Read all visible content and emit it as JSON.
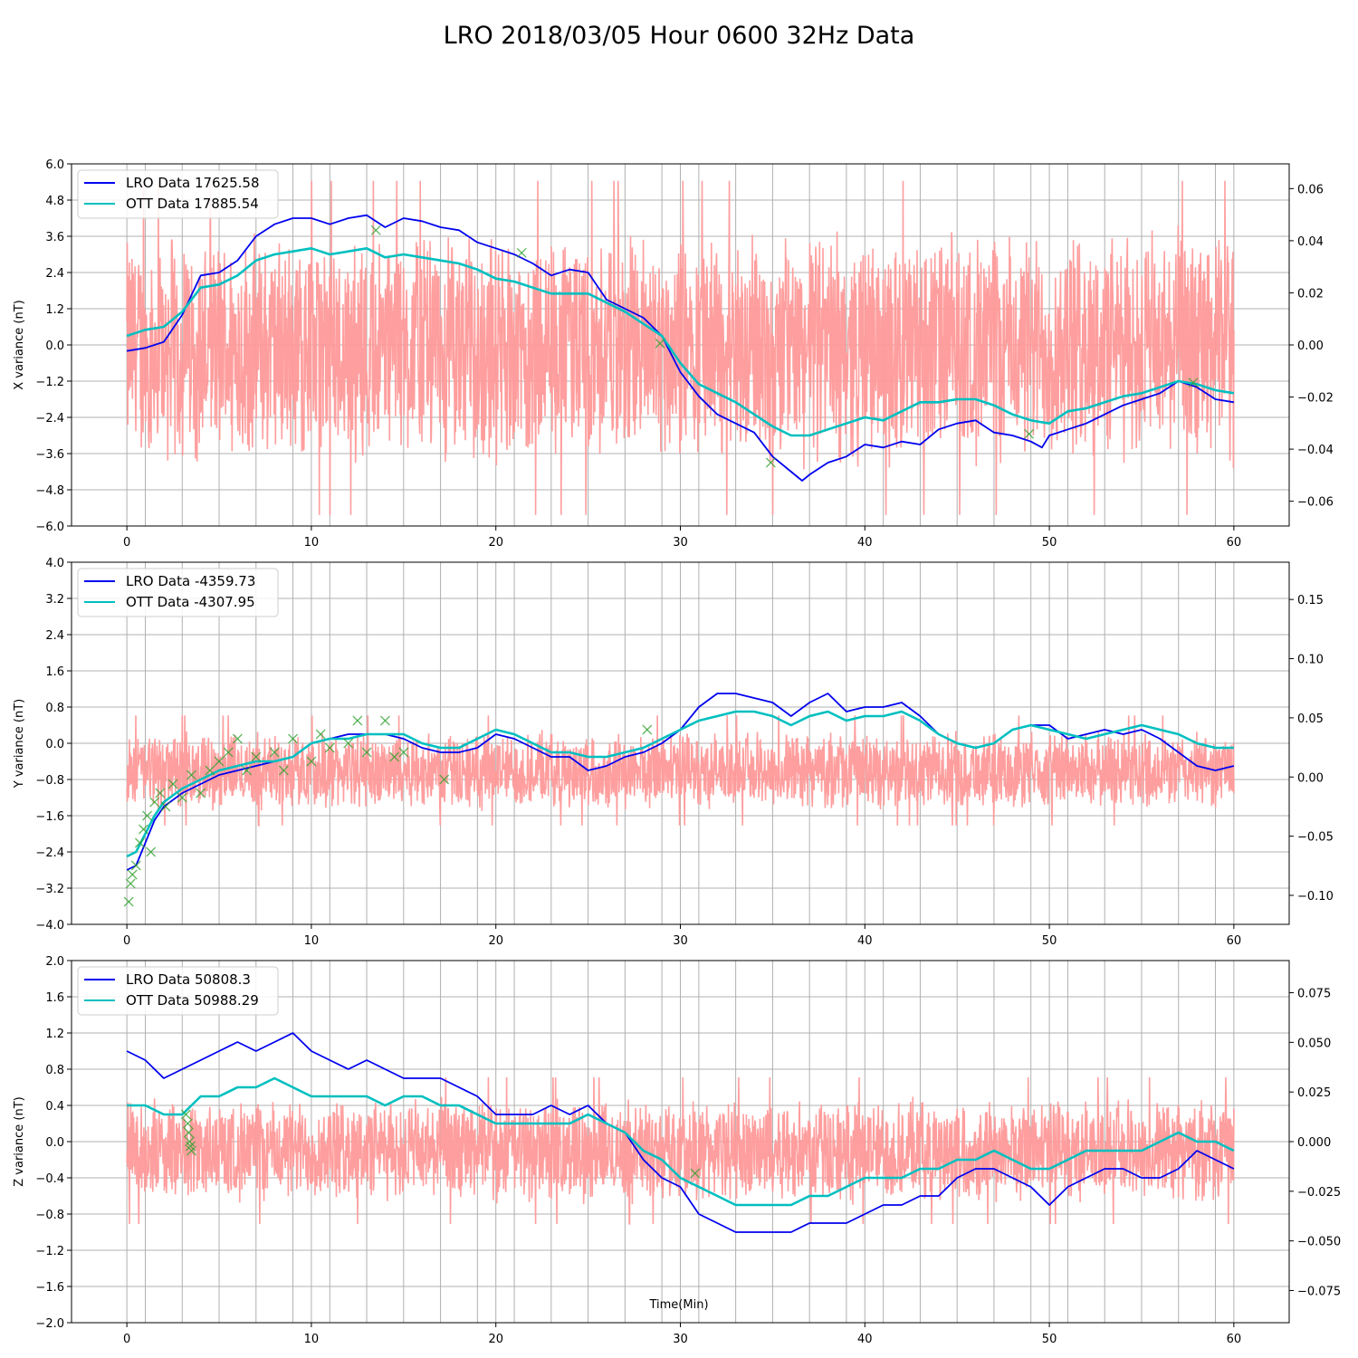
{
  "figure": {
    "title": "LRO 2018/03/05 Hour 0600 32Hz Data",
    "xlabel": "Time(Min)"
  },
  "colors": {
    "lro": "#0000ee",
    "ott": "#00bfbf",
    "noise": "#ff9999",
    "marker": "#2ca02c",
    "grid": "#b0b0b0"
  },
  "chart_data": [
    {
      "type": "line",
      "ylabel": "X variance (nT)",
      "xlim": [
        -3,
        63
      ],
      "xticks": [
        0,
        10,
        20,
        30,
        40,
        50,
        60
      ],
      "ylim": [
        -6.0,
        6.0
      ],
      "yticks": [
        -6.0,
        -4.8,
        -3.6,
        -2.4,
        -1.2,
        0.0,
        1.2,
        2.4,
        3.6,
        4.8,
        6.0
      ],
      "ylim_right": [
        -0.0695,
        0.0695
      ],
      "yticks_right": [
        -0.06,
        -0.04,
        -0.02,
        0.0,
        0.02,
        0.04,
        0.06
      ],
      "legend": [
        "LRO Data 17625.58",
        "OTT Data 17885.54"
      ],
      "legend_loc": "upper left",
      "grid": true,
      "series": [
        {
          "key": "lro",
          "x": [
            0,
            1,
            2,
            3,
            4,
            5,
            6,
            7,
            8,
            9,
            10,
            11,
            12,
            13,
            14,
            15,
            16,
            17,
            18,
            19,
            20,
            21,
            22,
            23,
            24,
            25,
            26,
            27,
            28,
            29,
            30,
            31,
            32,
            33,
            34,
            35,
            36,
            36.6,
            37,
            38,
            39,
            40,
            41,
            42,
            43,
            44,
            45,
            46,
            47,
            48,
            49,
            49.6,
            50,
            51,
            52,
            53,
            54,
            55,
            56,
            57,
            58,
            59,
            60
          ],
          "y": [
            -0.2,
            -0.1,
            0.1,
            1.0,
            2.3,
            2.4,
            2.8,
            3.6,
            4.0,
            4.2,
            4.2,
            4.0,
            4.2,
            4.3,
            3.9,
            4.2,
            4.1,
            3.9,
            3.8,
            3.4,
            3.2,
            3.0,
            2.7,
            2.3,
            2.5,
            2.4,
            1.5,
            1.2,
            0.9,
            0.3,
            -0.9,
            -1.7,
            -2.3,
            -2.6,
            -2.9,
            -3.7,
            -4.2,
            -4.5,
            -4.3,
            -3.9,
            -3.7,
            -3.3,
            -3.4,
            -3.2,
            -3.3,
            -2.8,
            -2.6,
            -2.5,
            -2.9,
            -3.0,
            -3.2,
            -3.4,
            -3.0,
            -2.8,
            -2.6,
            -2.3,
            -2.0,
            -1.8,
            -1.6,
            -1.2,
            -1.4,
            -1.8,
            -1.9
          ]
        },
        {
          "key": "ott",
          "x": [
            0,
            1,
            2,
            3,
            4,
            5,
            6,
            7,
            8,
            9,
            10,
            11,
            12,
            13,
            14,
            15,
            16,
            17,
            18,
            19,
            20,
            21,
            22,
            23,
            24,
            25,
            26,
            27,
            28,
            29,
            30,
            31,
            32,
            33,
            34,
            35,
            36,
            37,
            38,
            39,
            40,
            41,
            42,
            43,
            44,
            45,
            46,
            47,
            48,
            49,
            50,
            51,
            52,
            53,
            54,
            55,
            56,
            57,
            58,
            59,
            60
          ],
          "y": [
            0.3,
            0.5,
            0.6,
            1.1,
            1.9,
            2.0,
            2.3,
            2.8,
            3.0,
            3.1,
            3.2,
            3.0,
            3.1,
            3.2,
            2.9,
            3.0,
            2.9,
            2.8,
            2.7,
            2.5,
            2.2,
            2.1,
            1.9,
            1.7,
            1.7,
            1.7,
            1.4,
            1.1,
            0.7,
            0.3,
            -0.6,
            -1.3,
            -1.6,
            -1.9,
            -2.3,
            -2.7,
            -3.0,
            -3.0,
            -2.8,
            -2.6,
            -2.4,
            -2.5,
            -2.2,
            -1.9,
            -1.9,
            -1.8,
            -1.8,
            -2.0,
            -2.3,
            -2.5,
            -2.6,
            -2.2,
            -2.1,
            -1.9,
            -1.7,
            -1.6,
            -1.4,
            -1.2,
            -1.3,
            -1.5,
            -1.6
          ]
        }
      ],
      "noise_band": {
        "min": -4.2,
        "max": 4.0
      },
      "markers": [
        {
          "x": 13.5,
          "y": 3.8
        },
        {
          "x": 21.4,
          "y": 3.05
        },
        {
          "x": 28.9,
          "y": 0.05
        },
        {
          "x": 34.9,
          "y": -3.9
        },
        {
          "x": 48.9,
          "y": -2.95
        },
        {
          "x": 57.8,
          "y": -1.25
        }
      ]
    },
    {
      "type": "line",
      "ylabel": "Y variance (nT)",
      "xlim": [
        -3,
        63
      ],
      "xticks": [
        0,
        10,
        20,
        30,
        40,
        50,
        60
      ],
      "ylim": [
        -4.0,
        4.0
      ],
      "yticks": [
        -4.0,
        -3.2,
        -2.4,
        -1.6,
        -0.8,
        0.0,
        0.8,
        1.6,
        2.4,
        3.2,
        4.0
      ],
      "ylim_right": [
        -0.1245,
        0.1815
      ],
      "yticks_right": [
        -0.1,
        -0.05,
        0.0,
        0.05,
        0.1,
        0.15
      ],
      "legend": [
        "LRO Data -4359.73",
        "OTT Data -4307.95"
      ],
      "legend_loc": "upper left",
      "grid": true,
      "series": [
        {
          "key": "lro",
          "x": [
            0,
            0.5,
            1,
            1.5,
            2,
            3,
            4,
            5,
            6,
            7,
            8,
            9,
            10,
            11,
            12,
            13,
            14,
            15,
            16,
            17,
            18,
            19,
            20,
            21,
            22,
            23,
            24,
            25,
            26,
            27,
            28,
            29,
            30,
            31,
            32,
            33,
            34,
            35,
            36,
            37,
            38,
            39,
            40,
            41,
            42,
            43,
            44,
            45,
            46,
            47,
            48,
            49,
            50,
            51,
            52,
            53,
            54,
            55,
            56,
            57,
            58,
            59,
            60
          ],
          "y": [
            -2.8,
            -2.7,
            -2.2,
            -1.7,
            -1.4,
            -1.1,
            -0.9,
            -0.7,
            -0.6,
            -0.5,
            -0.4,
            -0.3,
            0.0,
            0.1,
            0.2,
            0.2,
            0.2,
            0.1,
            -0.1,
            -0.2,
            -0.2,
            -0.1,
            0.2,
            0.1,
            -0.1,
            -0.3,
            -0.3,
            -0.6,
            -0.5,
            -0.3,
            -0.2,
            0.0,
            0.3,
            0.8,
            1.1,
            1.1,
            1.0,
            0.9,
            0.6,
            0.9,
            1.1,
            0.7,
            0.8,
            0.8,
            0.9,
            0.6,
            0.2,
            0.0,
            -0.1,
            0.0,
            0.3,
            0.4,
            0.4,
            0.1,
            0.2,
            0.3,
            0.2,
            0.3,
            0.1,
            -0.2,
            -0.5,
            -0.6,
            -0.5
          ]
        },
        {
          "key": "ott",
          "x": [
            0,
            0.5,
            1,
            1.5,
            2,
            3,
            4,
            5,
            6,
            7,
            8,
            9,
            10,
            11,
            12,
            13,
            14,
            15,
            16,
            17,
            18,
            19,
            20,
            21,
            22,
            23,
            24,
            25,
            26,
            27,
            28,
            29,
            30,
            31,
            32,
            33,
            34,
            35,
            36,
            37,
            38,
            39,
            40,
            41,
            42,
            43,
            44,
            45,
            46,
            47,
            48,
            49,
            50,
            51,
            52,
            53,
            54,
            55,
            56,
            57,
            58,
            59,
            60
          ],
          "y": [
            -2.5,
            -2.4,
            -2.0,
            -1.6,
            -1.3,
            -1.0,
            -0.8,
            -0.6,
            -0.5,
            -0.4,
            -0.4,
            -0.3,
            0.0,
            0.1,
            0.1,
            0.2,
            0.2,
            0.2,
            0.0,
            -0.1,
            -0.1,
            0.1,
            0.3,
            0.2,
            0.0,
            -0.2,
            -0.2,
            -0.3,
            -0.3,
            -0.2,
            -0.1,
            0.1,
            0.3,
            0.5,
            0.6,
            0.7,
            0.7,
            0.6,
            0.4,
            0.6,
            0.7,
            0.5,
            0.6,
            0.6,
            0.7,
            0.5,
            0.2,
            0.0,
            -0.1,
            0.0,
            0.3,
            0.4,
            0.3,
            0.2,
            0.1,
            0.2,
            0.3,
            0.4,
            0.3,
            0.2,
            0.0,
            -0.1,
            -0.1
          ]
        }
      ],
      "noise_band": {
        "min": -1.5,
        "max": 0.3
      },
      "markers": [
        {
          "x": 0.1,
          "y": -3.5
        },
        {
          "x": 0.2,
          "y": -3.1
        },
        {
          "x": 0.3,
          "y": -2.9
        },
        {
          "x": 0.5,
          "y": -2.7
        },
        {
          "x": 0.7,
          "y": -2.2
        },
        {
          "x": 0.9,
          "y": -1.9
        },
        {
          "x": 1.1,
          "y": -1.6
        },
        {
          "x": 1.3,
          "y": -2.4
        },
        {
          "x": 1.5,
          "y": -1.3
        },
        {
          "x": 1.8,
          "y": -1.1
        },
        {
          "x": 2.1,
          "y": -1.4
        },
        {
          "x": 2.5,
          "y": -0.9
        },
        {
          "x": 3.0,
          "y": -1.2
        },
        {
          "x": 3.5,
          "y": -0.7
        },
        {
          "x": 4.0,
          "y": -1.1
        },
        {
          "x": 4.5,
          "y": -0.6
        },
        {
          "x": 5.0,
          "y": -0.4
        },
        {
          "x": 5.5,
          "y": -0.2
        },
        {
          "x": 6.0,
          "y": 0.1
        },
        {
          "x": 6.5,
          "y": -0.6
        },
        {
          "x": 7.0,
          "y": -0.3
        },
        {
          "x": 8.0,
          "y": -0.2
        },
        {
          "x": 8.5,
          "y": -0.6
        },
        {
          "x": 9.0,
          "y": 0.1
        },
        {
          "x": 10.0,
          "y": -0.4
        },
        {
          "x": 10.5,
          "y": 0.2
        },
        {
          "x": 11.0,
          "y": -0.1
        },
        {
          "x": 12.0,
          "y": 0.0
        },
        {
          "x": 12.5,
          "y": 0.5
        },
        {
          "x": 13.0,
          "y": -0.2
        },
        {
          "x": 14.0,
          "y": 0.5
        },
        {
          "x": 14.5,
          "y": -0.3
        },
        {
          "x": 15.0,
          "y": -0.2
        },
        {
          "x": 17.2,
          "y": -0.8
        },
        {
          "x": 28.2,
          "y": 0.3
        }
      ]
    },
    {
      "type": "line",
      "ylabel": "Z variance (nT)",
      "xlim": [
        -3,
        63
      ],
      "xticks": [
        0,
        10,
        20,
        30,
        40,
        50,
        60
      ],
      "ylim": [
        -2.0,
        2.0
      ],
      "yticks": [
        -2.0,
        -1.6,
        -1.2,
        -0.8,
        -0.4,
        0.0,
        0.4,
        0.8,
        1.2,
        1.6,
        2.0
      ],
      "ylim_right": [
        -0.0912,
        0.0912
      ],
      "yticks_right": [
        -0.075,
        -0.05,
        -0.025,
        0.0,
        0.025,
        0.05,
        0.075
      ],
      "legend": [
        "LRO Data 50808.3",
        "OTT Data 50988.29"
      ],
      "legend_loc": "upper left",
      "grid": true,
      "series": [
        {
          "key": "lro",
          "x": [
            0,
            1,
            2,
            3,
            4,
            5,
            6,
            7,
            8,
            9,
            10,
            11,
            12,
            13,
            14,
            15,
            16,
            17,
            18,
            19,
            20,
            21,
            22,
            23,
            24,
            25,
            26,
            27,
            28,
            29,
            30,
            31,
            32,
            33,
            34,
            35,
            36,
            37,
            38,
            39,
            40,
            41,
            42,
            43,
            44,
            45,
            46,
            47,
            48,
            49,
            50,
            51,
            52,
            53,
            54,
            55,
            56,
            57,
            58,
            59,
            60
          ],
          "y": [
            1.0,
            0.9,
            0.7,
            0.8,
            0.9,
            1.0,
            1.1,
            1.0,
            1.1,
            1.2,
            1.0,
            0.9,
            0.8,
            0.9,
            0.8,
            0.7,
            0.7,
            0.7,
            0.6,
            0.5,
            0.3,
            0.3,
            0.3,
            0.4,
            0.3,
            0.4,
            0.2,
            0.1,
            -0.2,
            -0.4,
            -0.5,
            -0.8,
            -0.9,
            -1.0,
            -1.0,
            -1.0,
            -1.0,
            -0.9,
            -0.9,
            -0.9,
            -0.8,
            -0.7,
            -0.7,
            -0.6,
            -0.6,
            -0.4,
            -0.3,
            -0.3,
            -0.4,
            -0.5,
            -0.7,
            -0.5,
            -0.4,
            -0.3,
            -0.3,
            -0.4,
            -0.4,
            -0.3,
            -0.1,
            -0.2,
            -0.3
          ]
        },
        {
          "key": "ott",
          "x": [
            0,
            1,
            2,
            3,
            4,
            5,
            6,
            7,
            8,
            9,
            10,
            11,
            12,
            13,
            14,
            15,
            16,
            17,
            18,
            19,
            20,
            21,
            22,
            23,
            24,
            25,
            26,
            27,
            28,
            29,
            30,
            31,
            32,
            33,
            34,
            35,
            36,
            37,
            38,
            39,
            40,
            41,
            42,
            43,
            44,
            45,
            46,
            47,
            48,
            49,
            50,
            51,
            52,
            53,
            54,
            55,
            56,
            57,
            58,
            59,
            60
          ],
          "y": [
            0.4,
            0.4,
            0.3,
            0.3,
            0.5,
            0.5,
            0.6,
            0.6,
            0.7,
            0.6,
            0.5,
            0.5,
            0.5,
            0.5,
            0.4,
            0.5,
            0.5,
            0.4,
            0.4,
            0.3,
            0.2,
            0.2,
            0.2,
            0.2,
            0.2,
            0.3,
            0.2,
            0.1,
            -0.1,
            -0.2,
            -0.4,
            -0.5,
            -0.6,
            -0.7,
            -0.7,
            -0.7,
            -0.7,
            -0.6,
            -0.6,
            -0.5,
            -0.4,
            -0.4,
            -0.4,
            -0.3,
            -0.3,
            -0.2,
            -0.2,
            -0.1,
            -0.2,
            -0.3,
            -0.3,
            -0.2,
            -0.1,
            -0.1,
            -0.1,
            -0.1,
            0.0,
            0.1,
            0.0,
            0.0,
            -0.1
          ]
        }
      ],
      "noise_band": {
        "min": -0.7,
        "max": 0.5
      },
      "markers": [
        {
          "x": 3.2,
          "y": 0.3
        },
        {
          "x": 3.3,
          "y": 0.2
        },
        {
          "x": 3.35,
          "y": 0.1
        },
        {
          "x": 3.4,
          "y": 0.0
        },
        {
          "x": 3.45,
          "y": -0.05
        },
        {
          "x": 3.5,
          "y": -0.1
        },
        {
          "x": 30.8,
          "y": -0.35
        }
      ]
    }
  ]
}
